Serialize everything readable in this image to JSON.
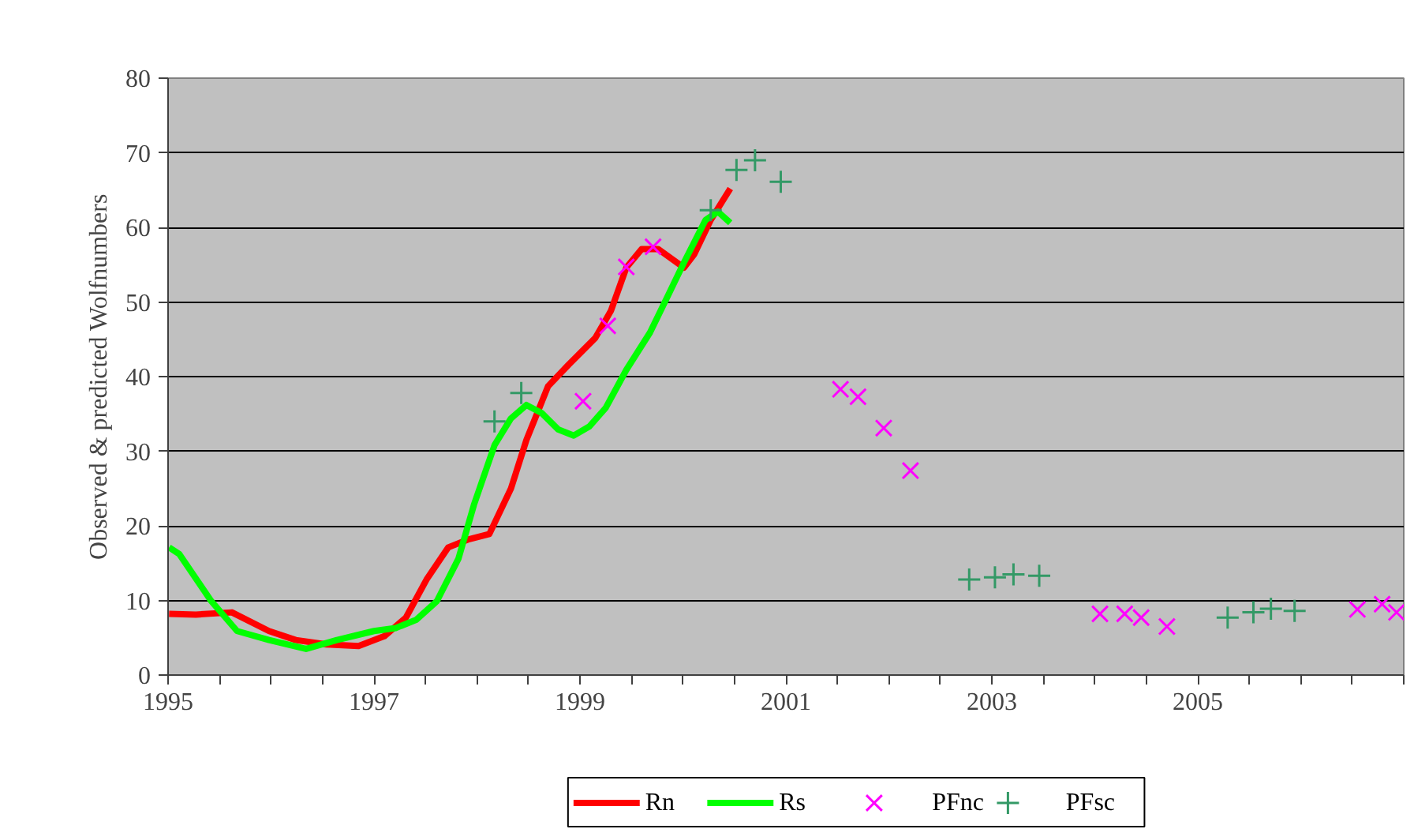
{
  "chart_data": {
    "type": "line",
    "ylabel": "Observed & predicted Wolfnumbers",
    "xlim": [
      1995,
      2007
    ],
    "xticks": [
      1995,
      {
        "value": 1995.5,
        "label": null
      },
      {
        "value": 1996,
        "label": null
      },
      {
        "value": 1996.5,
        "label": null
      },
      1997,
      {
        "value": 1997.5,
        "label": null
      },
      {
        "value": 1998,
        "label": null
      },
      {
        "value": 1998.5,
        "label": null
      },
      1999,
      {
        "value": 1999.5,
        "label": null
      },
      {
        "value": 2000,
        "label": null
      },
      {
        "value": 2000.5,
        "label": null
      },
      2001,
      {
        "value": 2001.5,
        "label": null
      },
      {
        "value": 2002,
        "label": null
      },
      {
        "value": 2002.5,
        "label": null
      },
      2003,
      {
        "value": 2003.5,
        "label": null
      },
      {
        "value": 2004,
        "label": null
      },
      {
        "value": 2004.5,
        "label": null
      },
      2005,
      {
        "value": 2005.5,
        "label": null
      },
      {
        "value": 2006,
        "label": null
      },
      {
        "value": 2006.5,
        "label": null
      },
      {
        "value": 2007,
        "label": null
      }
    ],
    "ylim": [
      0,
      80
    ],
    "yticks": [
      0,
      10,
      20,
      30,
      40,
      50,
      60,
      70,
      80
    ],
    "grid": "y",
    "legend": "bottom",
    "series": [
      {
        "name": "Rn",
        "color": "#ff0000",
        "marker": "none",
        "line_style": "solid",
        "x": [
          1995.01,
          1995.27,
          1995.62,
          1995.98,
          1996.24,
          1996.54,
          1996.85,
          1997.1,
          1997.31,
          1997.51,
          1997.72,
          1997.92,
          1998.12,
          1998.33,
          1998.48,
          1998.69,
          1998.89,
          1999.15,
          1999.3,
          1999.45,
          1999.6,
          1999.76,
          2000.01,
          2000.11,
          2000.27,
          2000.46
        ],
        "values": [
          8.2,
          8.1,
          8.4,
          5.9,
          4.7,
          4.1,
          3.9,
          5.2,
          7.7,
          12.8,
          17.1,
          18.2,
          18.9,
          25,
          31.5,
          38.7,
          41.6,
          45.2,
          48.8,
          54.6,
          57.1,
          57.1,
          54.6,
          56.4,
          61,
          65.2
        ]
      },
      {
        "name": "Rs",
        "color": "#00ff00",
        "marker": "none",
        "line_style": "solid",
        "x": [
          1995.01,
          1995.11,
          1995.42,
          1995.67,
          1995.98,
          1996.34,
          1996.64,
          1997.0,
          1997.21,
          1997.41,
          1997.61,
          1997.82,
          1997.97,
          1998.17,
          1998.33,
          1998.48,
          1998.63,
          1998.79,
          1998.94,
          1999.09,
          1999.25,
          1999.45,
          1999.68,
          1999.86,
          2000.01,
          2000.22,
          2000.34,
          2000.46
        ],
        "values": [
          17.1,
          16.2,
          9.9,
          5.9,
          4.7,
          3.5,
          4.7,
          5.9,
          6.3,
          7.4,
          9.9,
          15.6,
          22.8,
          30.8,
          34.4,
          36.2,
          35.1,
          32.9,
          32.1,
          33.3,
          35.8,
          40.9,
          45.9,
          51,
          55.3,
          61,
          62.1,
          60.6
        ]
      },
      {
        "name": "PFnc",
        "type": "scatter",
        "color": "#ff00ff",
        "marker": "x",
        "x": [
          1999.03,
          1999.27,
          1999.45,
          1999.71,
          2001.53,
          2001.7,
          2001.95,
          2002.21,
          2004.05,
          2004.29,
          2004.45,
          2004.7,
          2006.55,
          2006.79,
          2006.93
        ],
        "values": [
          36.7,
          46.8,
          54.7,
          57.4,
          38.3,
          37.3,
          33.1,
          27.4,
          8.2,
          8.2,
          7.7,
          6.5,
          8.8,
          9.5,
          8.4
        ]
      },
      {
        "name": "PFsc",
        "type": "scatter",
        "color": "#339966",
        "marker": "cross",
        "x": [
          1998.17,
          1998.43,
          2000.27,
          2000.52,
          2000.7,
          2000.95,
          2002.78,
          2003.03,
          2003.21,
          2003.46,
          2005.29,
          2005.54,
          2005.71,
          2005.94
        ],
        "values": [
          34.0,
          37.8,
          62.3,
          67.7,
          69,
          66.1,
          12.8,
          13.1,
          13.5,
          13.3,
          7.7,
          8.4,
          8.9,
          8.6
        ]
      }
    ]
  }
}
